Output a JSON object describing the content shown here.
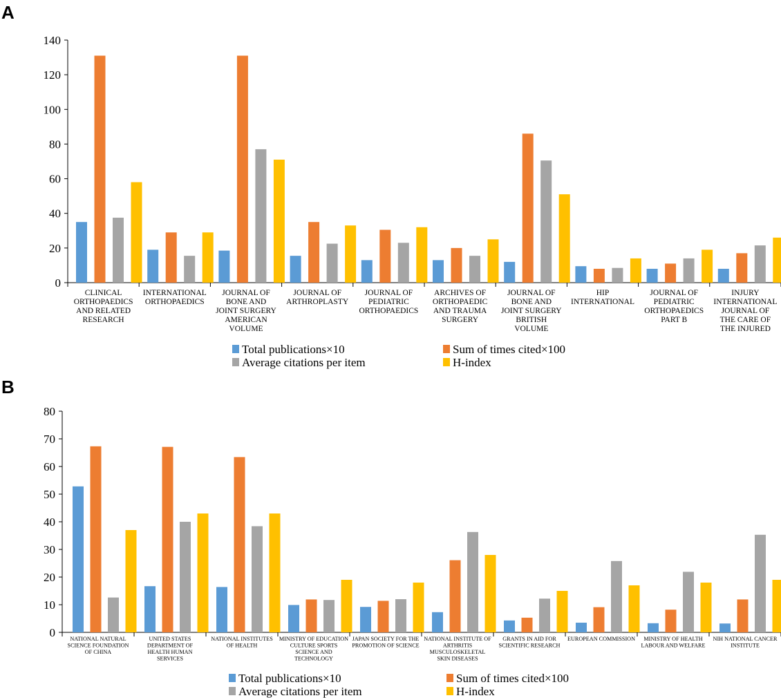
{
  "colors": {
    "total_publications": "#5b9bd5",
    "sum_cited": "#ed7d31",
    "avg_citations": "#a5a5a5",
    "h_index": "#ffc000"
  },
  "chart_data": [
    {
      "panel": "A",
      "type": "bar",
      "ylim": [
        0,
        140
      ],
      "yticks": [
        0,
        20,
        40,
        60,
        80,
        100,
        120,
        140
      ],
      "grid": false,
      "legend_position": "bottom",
      "categories": [
        [
          "CLINICAL",
          "ORTHOPAEDICS",
          "AND RELATED",
          "RESEARCH"
        ],
        [
          "INTERNATIONAL",
          "ORTHOPAEDICS"
        ],
        [
          "JOURNAL OF",
          "BONE AND",
          "JOINT SURGERY",
          "AMERICAN",
          "VOLUME"
        ],
        [
          "JOURNAL OF",
          "ARTHROPLASTY"
        ],
        [
          "JOURNAL OF",
          "PEDIATRIC",
          "ORTHOPAEDICS"
        ],
        [
          "ARCHIVES OF",
          "ORTHOPAEDIC",
          "AND TRAUMA",
          "SURGERY"
        ],
        [
          "JOURNAL OF",
          "BONE AND",
          "JOINT SURGERY",
          "BRITISH",
          "VOLUME"
        ],
        [
          "HIP",
          "INTERNATIONAL"
        ],
        [
          "JOURNAL OF",
          "PEDIATRIC",
          "ORTHOPAEDICS",
          "PART B"
        ],
        [
          "INJURY",
          "INTERNATIONAL",
          "JOURNAL OF",
          "THE CARE OF",
          "THE INJURED"
        ]
      ],
      "series": [
        {
          "name": "Total publications×10",
          "key": "total_publications",
          "values": [
            35,
            19,
            18.5,
            15.5,
            13,
            13,
            12,
            9.5,
            8,
            8
          ]
        },
        {
          "name": "Sum of times cited×100",
          "key": "sum_cited",
          "values": [
            131,
            29,
            131,
            35,
            30.5,
            20,
            86,
            8,
            11,
            17
          ]
        },
        {
          "name": "Average citations per item",
          "key": "avg_citations",
          "values": [
            37.5,
            15.5,
            77,
            22.5,
            23,
            15.5,
            70.5,
            8.5,
            14,
            21.5
          ]
        },
        {
          "name": "H-index",
          "key": "h_index",
          "values": [
            58,
            29,
            71,
            33,
            32,
            25,
            51,
            14,
            19,
            26
          ]
        }
      ]
    },
    {
      "panel": "B",
      "type": "bar",
      "ylim": [
        0,
        80
      ],
      "yticks": [
        0,
        10,
        20,
        30,
        40,
        50,
        60,
        70,
        80
      ],
      "grid": false,
      "legend_position": "bottom",
      "categories": [
        [
          "NATIONAL NATURAL",
          "SCIENCE FOUNDATION",
          "OF CHINA"
        ],
        [
          "UNITED STATES",
          "DEPARTMENT OF",
          "HEALTH HUMAN",
          "SERVICES"
        ],
        [
          "NATIONAL INSTITUTES",
          "OF HEALTH"
        ],
        [
          "MINISTRY OF EDUCATION",
          "CULTURE SPORTS",
          "SCIENCE AND",
          "TECHNOLOGY"
        ],
        [
          "JAPAN SOCIETY FOR THE",
          "PROMOTION OF SCIENCE"
        ],
        [
          "NATIONAL INSTITUTE OF",
          "ARTHRITIS",
          "MUSCULOSKELETAL",
          "SKIN DISEASES"
        ],
        [
          "GRANTS IN AID FOR",
          "SCIENTIFIC RESEARCH"
        ],
        [
          "EUROPEAN COMMISSION"
        ],
        [
          "MINISTRY OF HEALTH",
          "LABOUR AND WELFARE"
        ],
        [
          "NIH NATIONAL CANCER",
          "INSTITUTE"
        ]
      ],
      "series": [
        {
          "name": "Total publications×10",
          "key": "total_publications",
          "values": [
            52.8,
            16.7,
            16.4,
            9.9,
            9.2,
            7.3,
            4.3,
            3.5,
            3.3,
            3.2
          ]
        },
        {
          "name": "Sum of times cited×100",
          "key": "sum_cited",
          "values": [
            67.3,
            67.1,
            63.4,
            11.9,
            11.4,
            26.1,
            5.3,
            9.1,
            8.2,
            11.9
          ]
        },
        {
          "name": "Average citations per item",
          "key": "avg_citations",
          "values": [
            12.6,
            40,
            38.4,
            11.7,
            12,
            36.3,
            12.2,
            25.8,
            21.9,
            35.3
          ]
        },
        {
          "name": "H-index",
          "key": "h_index",
          "values": [
            37,
            43,
            43,
            19,
            18,
            28,
            15,
            17,
            18,
            19
          ]
        }
      ]
    }
  ]
}
